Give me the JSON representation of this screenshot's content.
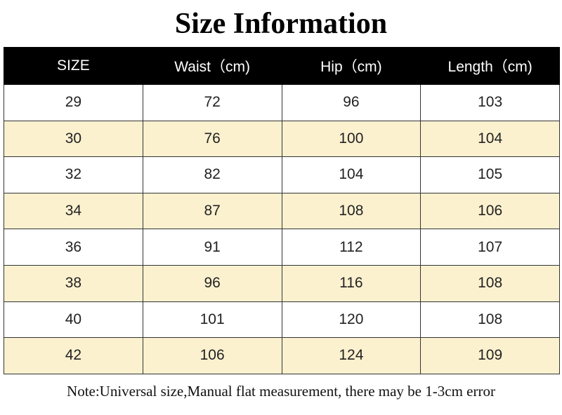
{
  "header": {
    "title": "Size Information"
  },
  "table": {
    "columns": [
      "SIZE",
      "Waist（cm)",
      "Hip（cm)",
      "Length（cm)"
    ],
    "rows": [
      [
        29,
        72,
        96,
        103
      ],
      [
        30,
        76,
        100,
        104
      ],
      [
        32,
        82,
        104,
        105
      ],
      [
        34,
        87,
        108,
        106
      ],
      [
        36,
        91,
        112,
        107
      ],
      [
        38,
        96,
        116,
        108
      ],
      [
        40,
        101,
        120,
        108
      ],
      [
        42,
        106,
        124,
        109
      ]
    ]
  },
  "note": "Note:Universal size,Manual flat measurement, there may be 1-3cm error"
}
